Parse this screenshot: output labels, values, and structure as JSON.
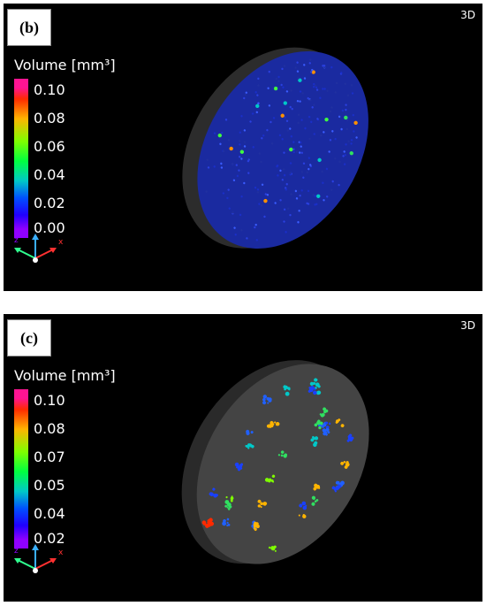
{
  "panels": [
    {
      "label": "(b)",
      "mode": "3D",
      "legend_title": "Volume [mm³]",
      "ticks": [
        "0.10",
        "0.08",
        "0.06",
        "0.04",
        "0.02",
        "0.00"
      ]
    },
    {
      "label": "(c)",
      "mode": "3D",
      "legend_title": "Volume [mm³]",
      "ticks": [
        "0.10",
        "0.08",
        "0.07",
        "0.05",
        "0.04",
        "0.02"
      ]
    }
  ],
  "colors": {
    "panel_bg": "#000000",
    "colorbar_stops": [
      "#ff1493",
      "#ff2a00",
      "#ffb400",
      "#7fff00",
      "#00ff00",
      "#00c8c8",
      "#0050ff",
      "#2000ff",
      "#9000ff"
    ],
    "disc_fill": "#3a3a3a",
    "pore_blue": "#1a2fc8",
    "axis_x": "#ff3030",
    "axis_y": "#3ab0ff",
    "axis_z": "#30ff90"
  },
  "icons": {
    "axes": "xyz-axes-icon"
  }
}
